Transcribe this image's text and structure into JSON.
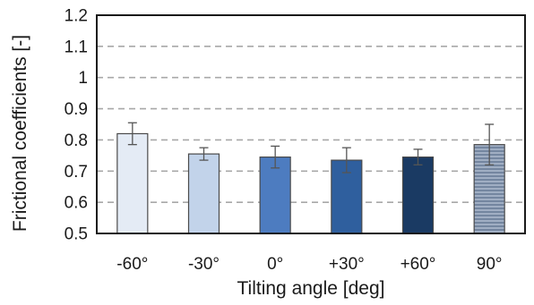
{
  "chart_data": {
    "type": "bar",
    "title": "",
    "xlabel": "Tilting angle [deg]",
    "ylabel": "Frictional coefficients [-]",
    "categories": [
      "-60°",
      "-30°",
      "0°",
      "+30°",
      "+60°",
      "90°"
    ],
    "values": [
      0.82,
      0.755,
      0.745,
      0.735,
      0.745,
      0.785
    ],
    "error": [
      0.035,
      0.02,
      0.035,
      0.04,
      0.025,
      0.065
    ],
    "ylim": [
      0.5,
      1.2
    ],
    "yticks": [
      "0.5",
      "0.6",
      "0.7",
      "0.8",
      "0.9",
      "1",
      "1.1",
      "1.2"
    ],
    "grid": true,
    "bar_colors": [
      "#e4ebf5",
      "#c2d3ea",
      "#4d7cc0",
      "#2f5f9e",
      "#1a3a63",
      "#8c9cb5"
    ],
    "bar_patterns": [
      "solid",
      "solid",
      "solid",
      "solid",
      "solid",
      "hatched"
    ]
  }
}
